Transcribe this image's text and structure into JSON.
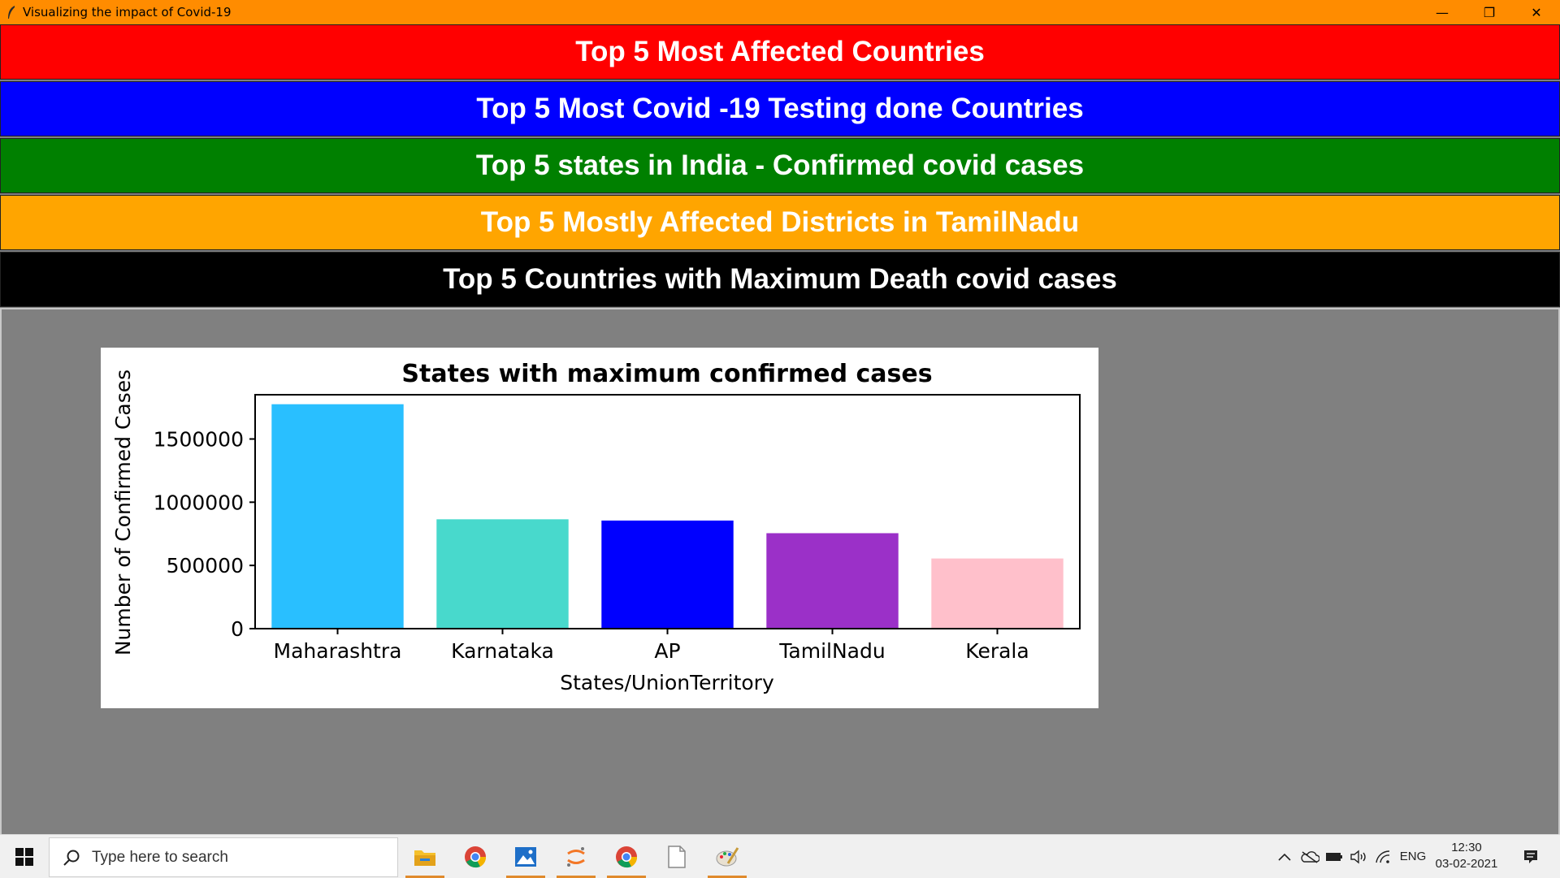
{
  "window": {
    "title": "Visualizing the impact of  Covid-19",
    "controls": {
      "minimize": "—",
      "restore": "❐",
      "close": "✕"
    }
  },
  "menu": [
    {
      "label": "Top 5 Most Affected Countries",
      "color": "#ff0000"
    },
    {
      "label": "Top 5 Most Covid -19 Testing done Countries",
      "color": "#0000ff"
    },
    {
      "label": "Top 5 states in India - Confirmed covid cases",
      "color": "#008000"
    },
    {
      "label": "Top 5 Mostly Affected Districts in TamilNadu",
      "color": "#ffa500"
    },
    {
      "label": "Top 5 Countries with Maximum Death covid cases",
      "color": "#000000"
    }
  ],
  "chart_data": {
    "type": "bar",
    "title": "States with maximum confirmed cases",
    "xlabel": "States/UnionTerritory",
    "ylabel": "Number of Confirmed Cases",
    "categories": [
      "Maharashtra",
      "Karnataka",
      "AP",
      "TamilNadu",
      "Kerala"
    ],
    "values": [
      1775000,
      865000,
      855000,
      755000,
      555000
    ],
    "colors": [
      "#29bfff",
      "#48d9cc",
      "#0000ff",
      "#9b30c8",
      "#ffc0cb"
    ],
    "ylim": [
      0,
      1850000
    ],
    "yticks": [
      0,
      500000,
      1000000,
      1500000
    ],
    "ytick_labels": [
      "0",
      "500000",
      "1000000",
      "1500000"
    ],
    "grid": false
  },
  "taskbar": {
    "search_placeholder": "Type here to search",
    "apps": [
      "file-explorer-icon",
      "chrome-icon",
      "photos-icon",
      "jupyter-icon",
      "chrome-icon",
      "notepad-icon",
      "paint-icon"
    ],
    "tray": {
      "language": "ENG"
    },
    "clock": {
      "time": "12:30",
      "date": "03-02-2021"
    }
  }
}
